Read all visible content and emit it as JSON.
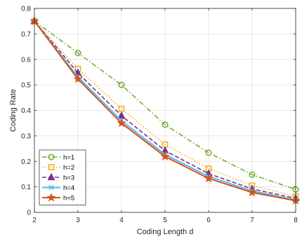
{
  "chart_data": {
    "type": "line",
    "title": "",
    "xlabel": "Coding Length d",
    "ylabel": "Coding Rate",
    "x": [
      2,
      3,
      4,
      5,
      6,
      7,
      8
    ],
    "xlim": [
      2,
      8
    ],
    "ylim": [
      0,
      0.8
    ],
    "xticks": [
      "2",
      "3",
      "4",
      "5",
      "6",
      "7",
      "8"
    ],
    "yticks": [
      "0",
      "0.1",
      "0.2",
      "0.3",
      "0.4",
      "0.5",
      "0.6",
      "0.7",
      "0.8"
    ],
    "grid": true,
    "legend_position": "bottom-left",
    "series": [
      {
        "name": "h=1",
        "values": [
          0.75,
          0.625,
          0.5,
          0.344,
          0.234,
          0.148,
          0.09
        ],
        "color": "#77AC30",
        "marker": "circle",
        "dash": "dashdot"
      },
      {
        "name": "h=2",
        "values": [
          0.75,
          0.563,
          0.406,
          0.266,
          0.172,
          0.105,
          0.063
        ],
        "color": "#EDB120",
        "marker": "square",
        "dash": "dotted"
      },
      {
        "name": "h=3",
        "values": [
          0.75,
          0.547,
          0.379,
          0.242,
          0.152,
          0.092,
          0.055
        ],
        "color": "#7E2F8E",
        "marker": "triangle",
        "dash": "dashed"
      },
      {
        "name": "h=4",
        "values": [
          0.75,
          0.531,
          0.359,
          0.227,
          0.141,
          0.084,
          0.049
        ],
        "color": "#4DBEEE",
        "marker": "x",
        "dash": "solid"
      },
      {
        "name": "h=5",
        "values": [
          0.75,
          0.523,
          0.35,
          0.219,
          0.133,
          0.078,
          0.046
        ],
        "color": "#D95319",
        "marker": "star",
        "dash": "solid"
      }
    ]
  }
}
